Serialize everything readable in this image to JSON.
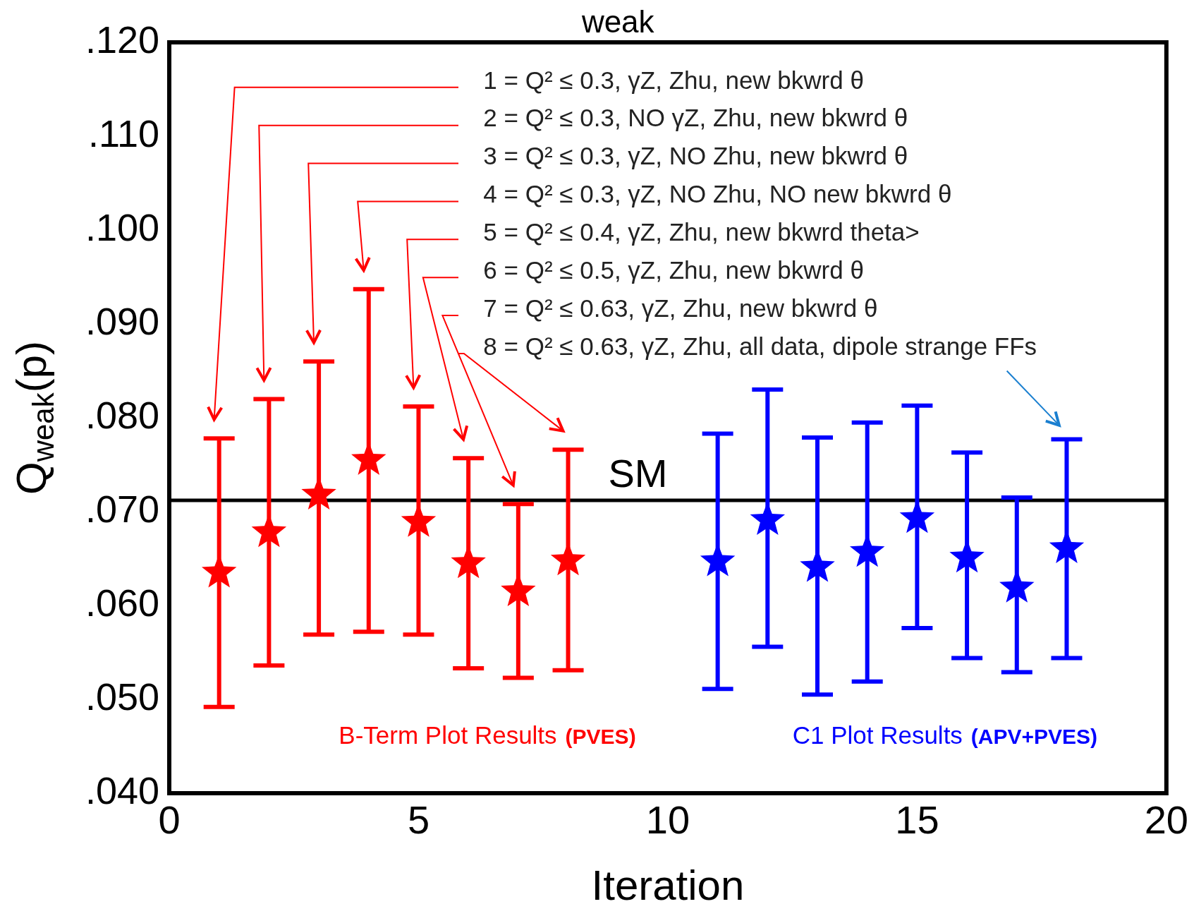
{
  "chart_data": {
    "type": "scatter",
    "title": "weak",
    "xlabel": "Iteration",
    "ylabel": "Q$_{weak}$(p)",
    "xlim": [
      0,
      20
    ],
    "xticks": [
      0,
      5,
      10,
      15,
      20
    ],
    "ylim": [
      0.04,
      0.12
    ],
    "yticks": [
      {
        "value": 0.04,
        "label": ".040"
      },
      {
        "value": 0.05,
        "label": ".050"
      },
      {
        "value": 0.06,
        "label": ".060"
      },
      {
        "value": 0.07,
        "label": ".070"
      },
      {
        "value": 0.08,
        "label": ".080"
      },
      {
        "value": 0.09,
        "label": ".090"
      },
      {
        "value": 0.1,
        "label": ".100"
      },
      {
        "value": 0.11,
        "label": ".110"
      },
      {
        "value": 0.12,
        "label": ".120"
      }
    ],
    "grid": false,
    "legend": false,
    "marker": "star",
    "series": [
      {
        "name": "B-Term Plot Results",
        "color": "#ff0000",
        "x": [
          1,
          2,
          3,
          4,
          5,
          6,
          7,
          8
        ],
        "values": [
          0.0635,
          0.0678,
          0.0718,
          0.0755,
          0.0689,
          0.0645,
          0.0615,
          0.0648
        ],
        "errors": [
          [
            0.0492,
            0.0778
          ],
          [
            0.0536,
            0.082
          ],
          [
            0.0569,
            0.086
          ],
          [
            0.0572,
            0.0937
          ],
          [
            0.0569,
            0.0812
          ],
          [
            0.0533,
            0.0757
          ],
          [
            0.0523,
            0.0708
          ],
          [
            0.0531,
            0.0766
          ]
        ]
      },
      {
        "name": "C1 Plot Results",
        "color": "#0000ff",
        "x": [
          11,
          12,
          13,
          14,
          15,
          16,
          17,
          18
        ],
        "values": [
          0.0647,
          0.0691,
          0.0641,
          0.0657,
          0.0693,
          0.0651,
          0.0619,
          0.0661
        ],
        "errors": [
          [
            0.0511,
            0.0783
          ],
          [
            0.0556,
            0.083
          ],
          [
            0.0505,
            0.0779
          ],
          [
            0.0519,
            0.0795
          ],
          [
            0.0576,
            0.0813
          ],
          [
            0.0544,
            0.0763
          ],
          [
            0.0529,
            0.0715
          ],
          [
            0.0544,
            0.0777
          ]
        ]
      }
    ],
    "ref_lines": [
      {
        "axis": "y",
        "value": 0.0712,
        "label": "SM",
        "color": "#000000"
      }
    ],
    "annotations": [
      "1 = Q² ≤ 0.3, γZ, Zhu, new bkwrd θ",
      "2 = Q² ≤ 0.3, NO γZ, Zhu, new bkwrd θ",
      "3 = Q² ≤ 0.3, γZ, NO Zhu, new bkwrd θ",
      "4 = Q² ≤ 0.3, γZ, NO Zhu, NO new bkwrd θ",
      "5 = Q² ≤ 0.4, γZ, Zhu, new bkwrd theta>",
      "6 = Q² ≤ 0.5, γZ, Zhu, new bkwrd θ",
      "7 = Q² ≤ 0.63, γZ, Zhu, new bkwrd θ",
      "8 = Q² ≤ 0.63, γZ, Zhu, all data, dipole strange FFs",
      "(PVES)",
      "(APV+PVES)"
    ]
  }
}
